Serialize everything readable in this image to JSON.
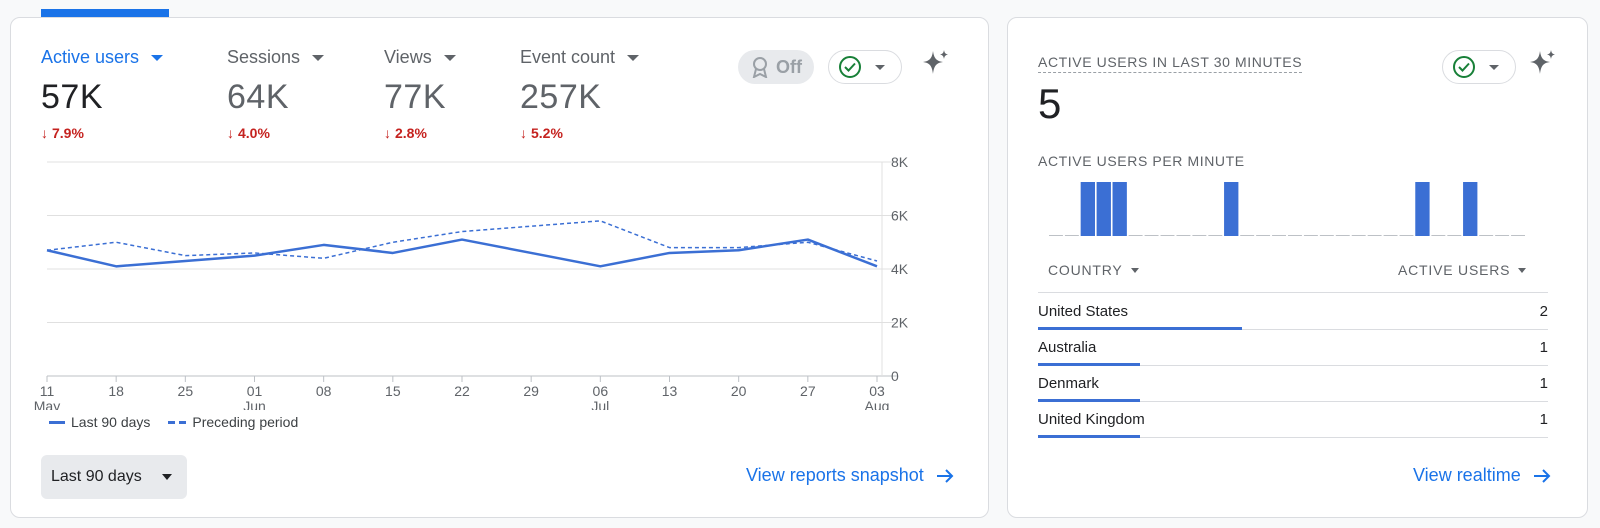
{
  "metrics": [
    {
      "label": "Active users",
      "value": "57K",
      "delta": "7.9%",
      "active": true
    },
    {
      "label": "Sessions",
      "value": "64K",
      "delta": "4.0%"
    },
    {
      "label": "Views",
      "value": "77K",
      "delta": "2.8%"
    },
    {
      "label": "Event count",
      "value": "257K",
      "delta": "5.2%"
    }
  ],
  "toolbar": {
    "off_label": "Off"
  },
  "chart_data": {
    "type": "line",
    "x": [
      "2024-05-11",
      "2024-05-18",
      "2024-05-25",
      "2024-06-01",
      "2024-06-08",
      "2024-06-15",
      "2024-06-22",
      "2024-06-29",
      "2024-07-06",
      "2024-07-13",
      "2024-07-20",
      "2024-07-27",
      "2024-08-03"
    ],
    "x_tick_labels": [
      {
        "day": "11",
        "month": "May"
      },
      {
        "day": "18",
        "month": ""
      },
      {
        "day": "25",
        "month": ""
      },
      {
        "day": "01",
        "month": "Jun"
      },
      {
        "day": "08",
        "month": ""
      },
      {
        "day": "15",
        "month": ""
      },
      {
        "day": "22",
        "month": ""
      },
      {
        "day": "29",
        "month": ""
      },
      {
        "day": "06",
        "month": "Jul"
      },
      {
        "day": "13",
        "month": ""
      },
      {
        "day": "20",
        "month": ""
      },
      {
        "day": "27",
        "month": ""
      },
      {
        "day": "03",
        "month": "Aug"
      }
    ],
    "y_ticks": [
      "0",
      "2K",
      "4K",
      "6K",
      "8K"
    ],
    "ylim": [
      0,
      8000
    ],
    "grid": true,
    "legend_position": "bottom-left",
    "series": [
      {
        "name": "Last 90 days",
        "style": "solid",
        "values": [
          4700,
          4100,
          4300,
          4500,
          4900,
          4600,
          5100,
          4600,
          4100,
          4600,
          4700,
          5100,
          4100
        ]
      },
      {
        "name": "Preceding period",
        "style": "dashed",
        "values": [
          4700,
          5000,
          4500,
          4600,
          4400,
          5000,
          5400,
          5600,
          5800,
          4800,
          4800,
          5000,
          4300
        ]
      }
    ]
  },
  "footer": {
    "range_label": "Last 90 days",
    "snapshot_link": "View reports snapshot"
  },
  "realtime": {
    "title": "ACTIVE USERS IN LAST 30 MINUTES",
    "value": "5",
    "per_minute_label": "ACTIVE USERS PER MINUTE",
    "per_minute_values": [
      0,
      0,
      1,
      1,
      1,
      0,
      0,
      0,
      0,
      0,
      0,
      1,
      0,
      0,
      0,
      0,
      0,
      0,
      0,
      0,
      0,
      0,
      0,
      1,
      0,
      0,
      1,
      0,
      0,
      0
    ],
    "country_header": "COUNTRY",
    "users_header": "ACTIVE USERS",
    "rows": [
      {
        "country": "United States",
        "users": "2",
        "share": 0.4
      },
      {
        "country": "Australia",
        "users": "1",
        "share": 0.2
      },
      {
        "country": "Denmark",
        "users": "1",
        "share": 0.2
      },
      {
        "country": "United Kingdom",
        "users": "1",
        "share": 0.2
      }
    ],
    "link": "View realtime"
  },
  "colors": {
    "accent": "#1a73e8",
    "series": "#3b6fd4",
    "negative": "#c5221f",
    "check": "#188038"
  }
}
